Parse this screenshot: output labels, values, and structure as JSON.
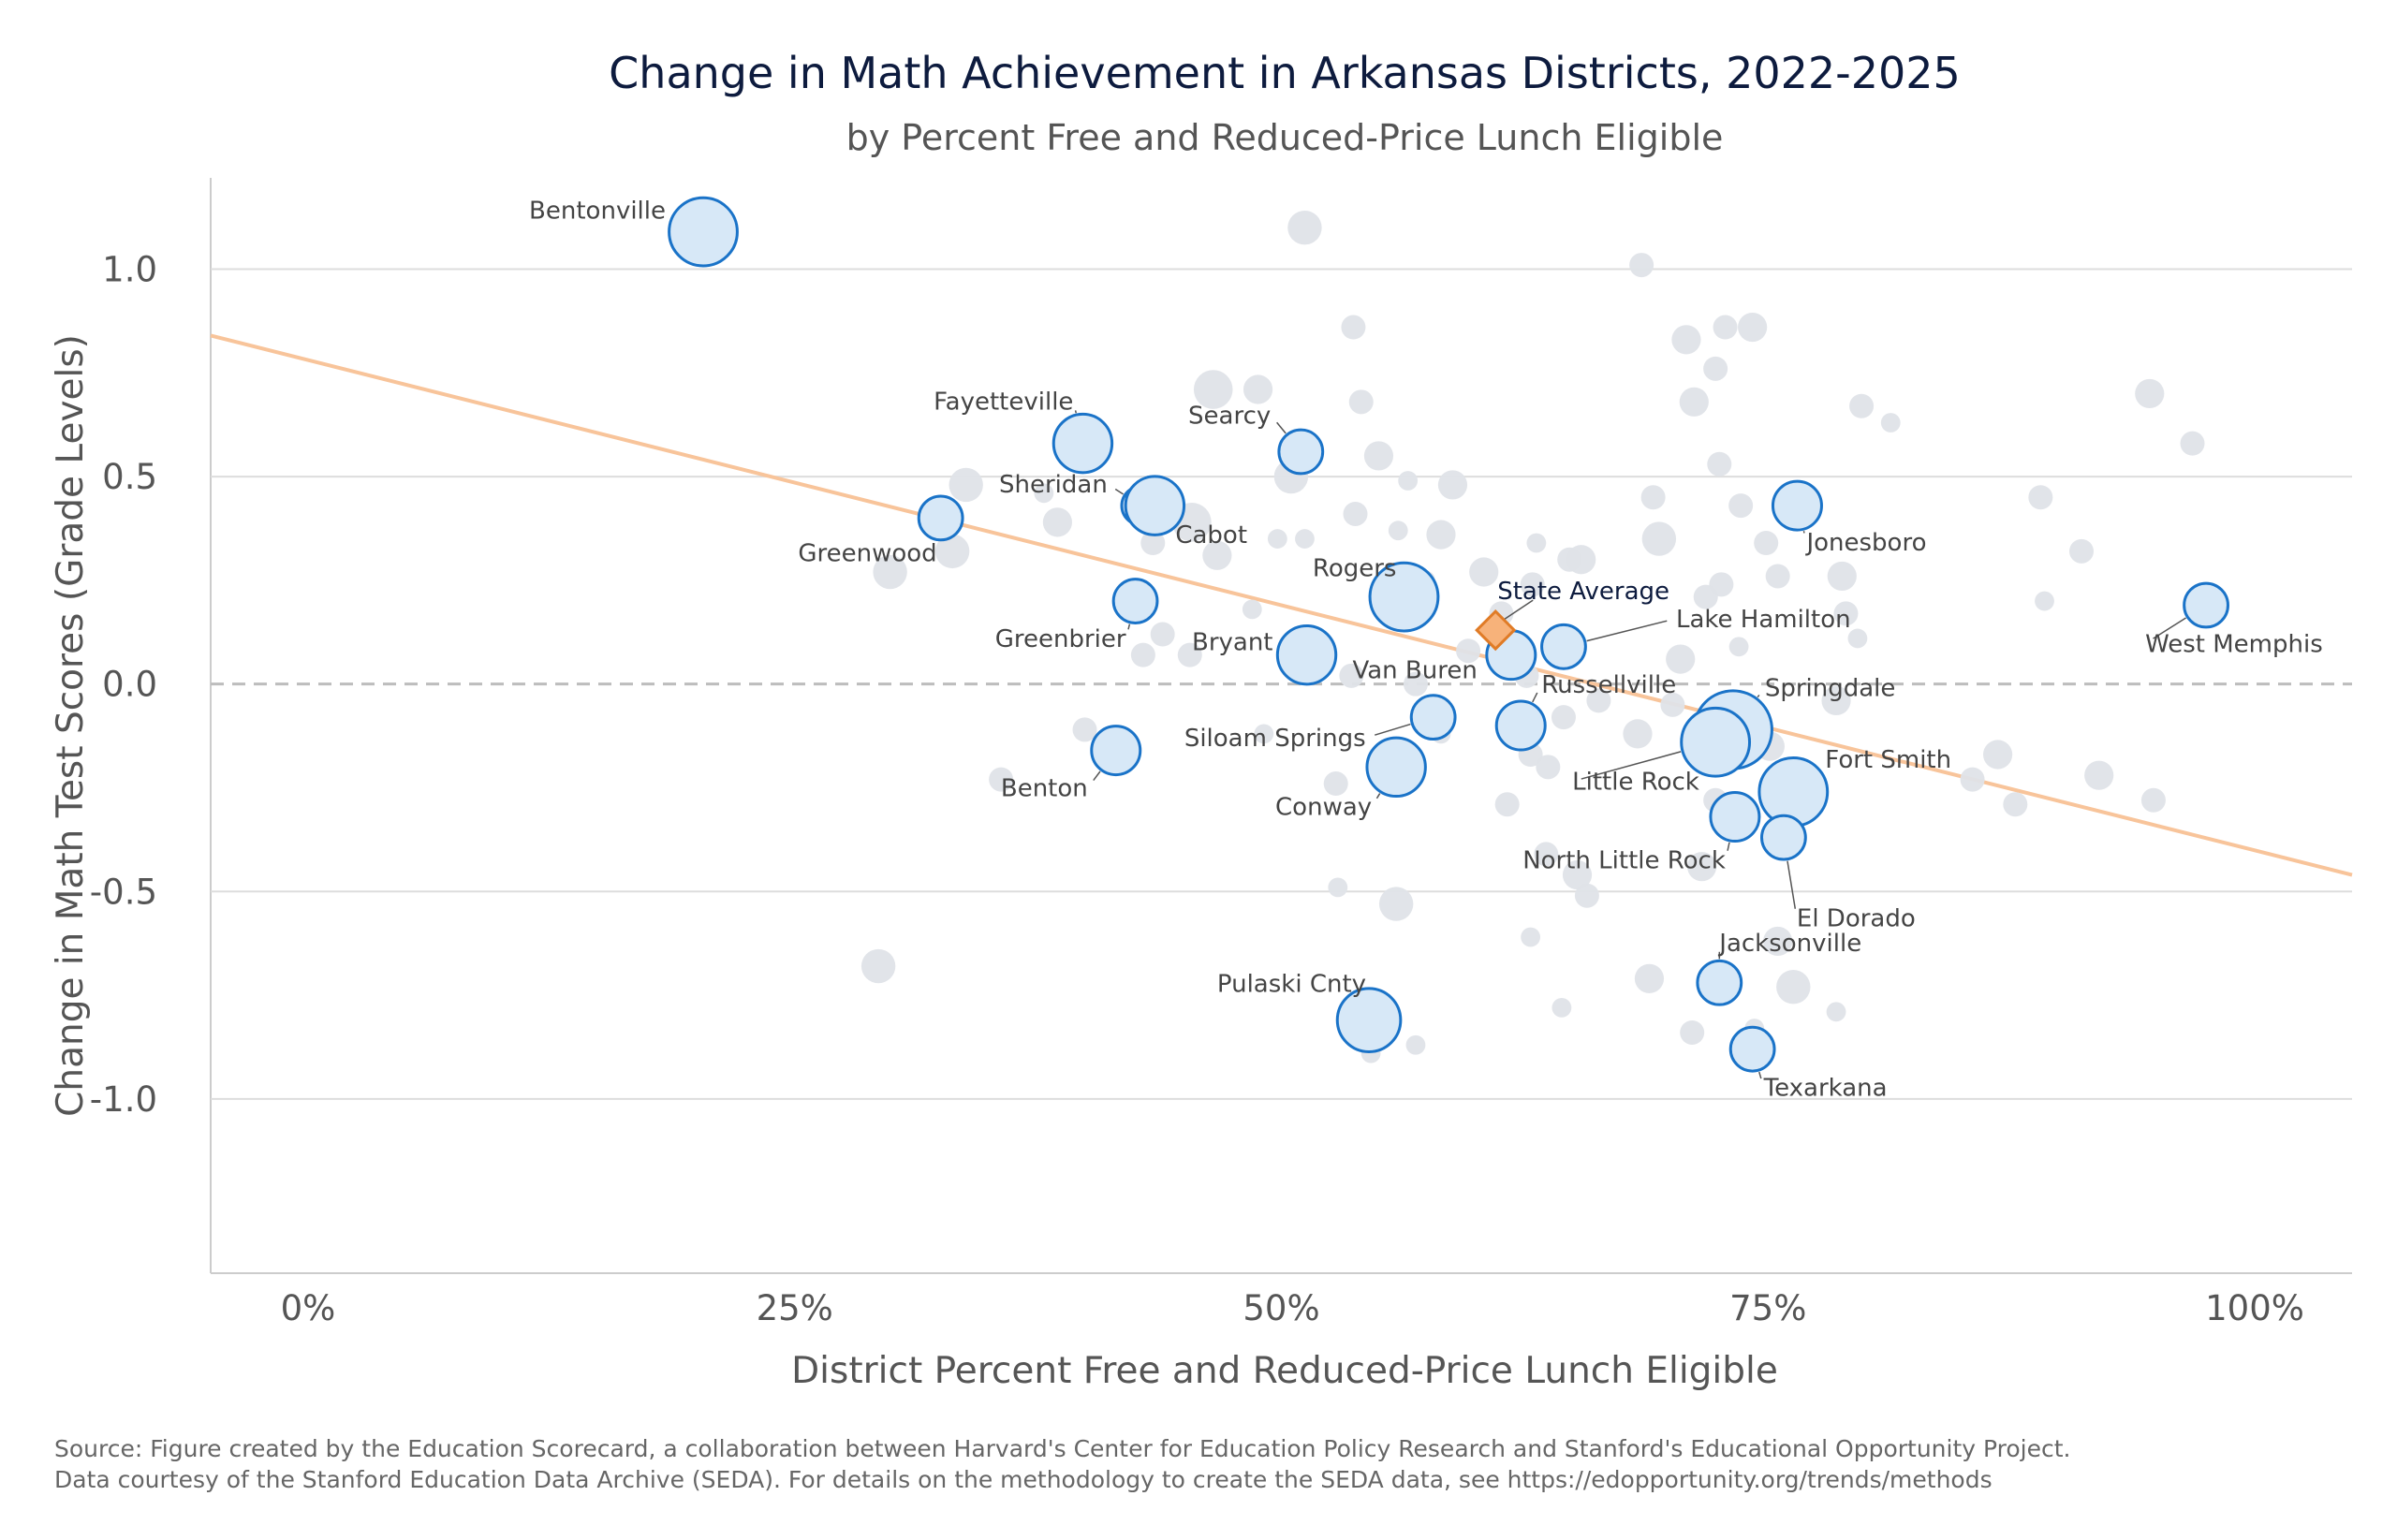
{
  "chart_data": {
    "type": "scatter",
    "title": "Change in Math Achievement in Arkansas Districts, 2022-2025",
    "subtitle": "by Percent Free and Reduced-Price Lunch Eligible",
    "xlabel": "District Percent Free and Reduced-Price Lunch Eligible",
    "ylabel": "Change in Math Test Scores (Grade Levels)",
    "xlim": [
      -5,
      105
    ],
    "ylim": [
      -1.42,
      1.22
    ],
    "x_ticks": [
      0,
      25,
      50,
      75,
      100
    ],
    "x_tick_labels": [
      "0%",
      "25%",
      "50%",
      "75%",
      "100%"
    ],
    "y_ticks": [
      1.0,
      0.5,
      0.0,
      -0.5,
      -1.0
    ],
    "y_tick_labels": [
      "1.0",
      "0.5",
      "0.0",
      "-0.5",
      "-1.0"
    ],
    "grid": "horizontal",
    "zero_line": "dashed",
    "trend_line": {
      "x": [
        -5,
        105
      ],
      "y": [
        0.84,
        -0.46
      ],
      "color": "#f8c49a"
    },
    "colors": {
      "highlight_fill": "#d7e8f7",
      "highlight_stroke": "#1a73c8",
      "background_fill": "#dfe3e8",
      "state_fill": "#f7b27a",
      "state_stroke": "#e07b26",
      "grid": "#dddddd"
    },
    "state_average": {
      "label": "State Average",
      "x": 61,
      "y": 0.13
    },
    "labeled_districts": [
      {
        "name": "Bentonville",
        "x": 20.3,
        "y": 1.09,
        "size": 14
      },
      {
        "name": "Fayetteville",
        "x": 39.8,
        "y": 0.58,
        "size": 12
      },
      {
        "name": "Greenwood",
        "x": 32.5,
        "y": 0.4,
        "size": 9
      },
      {
        "name": "Sheridan",
        "x": 42.8,
        "y": 0.43,
        "size": 8
      },
      {
        "name": "Cabot",
        "x": 43.5,
        "y": 0.43,
        "size": 12
      },
      {
        "name": "Searcy",
        "x": 51.0,
        "y": 0.56,
        "size": 9
      },
      {
        "name": "Rogers",
        "x": 56.3,
        "y": 0.21,
        "size": 14
      },
      {
        "name": "Greenbrier",
        "x": 42.5,
        "y": 0.2,
        "size": 9
      },
      {
        "name": "Bryant",
        "x": 51.3,
        "y": 0.07,
        "size": 12
      },
      {
        "name": "Van Buren",
        "x": 61.8,
        "y": 0.07,
        "size": 10
      },
      {
        "name": "Lake Hamilton",
        "x": 64.5,
        "y": 0.09,
        "size": 9
      },
      {
        "name": "Jonesboro",
        "x": 76.5,
        "y": 0.43,
        "size": 10
      },
      {
        "name": "West Memphis",
        "x": 97.5,
        "y": 0.19,
        "size": 9
      },
      {
        "name": "Russellville",
        "x": 62.3,
        "y": -0.1,
        "size": 10
      },
      {
        "name": "Springdale",
        "x": 73.2,
        "y": -0.11,
        "size": 16
      },
      {
        "name": "Little Rock",
        "x": 72.3,
        "y": -0.14,
        "size": 14
      },
      {
        "name": "Siloam Springs",
        "x": 57.8,
        "y": -0.08,
        "size": 9
      },
      {
        "name": "Conway",
        "x": 55.9,
        "y": -0.2,
        "size": 12
      },
      {
        "name": "Benton",
        "x": 41.5,
        "y": -0.16,
        "size": 10
      },
      {
        "name": "Fort Smith",
        "x": 76.3,
        "y": -0.26,
        "size": 14
      },
      {
        "name": "North Little Rock",
        "x": 73.3,
        "y": -0.32,
        "size": 10
      },
      {
        "name": "El Dorado",
        "x": 75.8,
        "y": -0.37,
        "size": 9
      },
      {
        "name": "Jacksonville",
        "x": 72.5,
        "y": -0.72,
        "size": 9
      },
      {
        "name": "Pulaski Cnty",
        "x": 54.5,
        "y": -0.81,
        "size": 13
      },
      {
        "name": "Texarkana",
        "x": 74.2,
        "y": -0.88,
        "size": 9
      }
    ],
    "other_districts": [
      {
        "x": 51.2,
        "y": 1.1,
        "size": 7
      },
      {
        "x": 68.5,
        "y": 1.01,
        "size": 5
      },
      {
        "x": 53.7,
        "y": 0.86,
        "size": 5
      },
      {
        "x": 70.8,
        "y": 0.83,
        "size": 6
      },
      {
        "x": 72.8,
        "y": 0.86,
        "size": 5
      },
      {
        "x": 74.2,
        "y": 0.86,
        "size": 6
      },
      {
        "x": 72.3,
        "y": 0.76,
        "size": 5
      },
      {
        "x": 46.5,
        "y": 0.71,
        "size": 8
      },
      {
        "x": 48.8,
        "y": 0.71,
        "size": 6
      },
      {
        "x": 71.2,
        "y": 0.68,
        "size": 6
      },
      {
        "x": 54.1,
        "y": 0.68,
        "size": 5
      },
      {
        "x": 79.8,
        "y": 0.67,
        "size": 5
      },
      {
        "x": 81.3,
        "y": 0.63,
        "size": 4
      },
      {
        "x": 94.6,
        "y": 0.7,
        "size": 6
      },
      {
        "x": 96.8,
        "y": 0.58,
        "size": 5
      },
      {
        "x": 55.0,
        "y": 0.55,
        "size": 6
      },
      {
        "x": 72.5,
        "y": 0.53,
        "size": 5
      },
      {
        "x": 50.5,
        "y": 0.5,
        "size": 7
      },
      {
        "x": 56.5,
        "y": 0.49,
        "size": 4
      },
      {
        "x": 58.8,
        "y": 0.48,
        "size": 6
      },
      {
        "x": 33.8,
        "y": 0.48,
        "size": 7
      },
      {
        "x": 37.8,
        "y": 0.46,
        "size": 4
      },
      {
        "x": 69.1,
        "y": 0.45,
        "size": 5
      },
      {
        "x": 73.6,
        "y": 0.43,
        "size": 5
      },
      {
        "x": 89.0,
        "y": 0.45,
        "size": 5
      },
      {
        "x": 53.8,
        "y": 0.41,
        "size": 5
      },
      {
        "x": 45.4,
        "y": 0.39,
        "size": 8
      },
      {
        "x": 38.5,
        "y": 0.39,
        "size": 6
      },
      {
        "x": 56.0,
        "y": 0.37,
        "size": 4
      },
      {
        "x": 58.2,
        "y": 0.36,
        "size": 6
      },
      {
        "x": 49.8,
        "y": 0.35,
        "size": 4
      },
      {
        "x": 51.2,
        "y": 0.35,
        "size": 4
      },
      {
        "x": 63.1,
        "y": 0.34,
        "size": 4
      },
      {
        "x": 69.4,
        "y": 0.35,
        "size": 7
      },
      {
        "x": 74.9,
        "y": 0.34,
        "size": 5
      },
      {
        "x": 91.1,
        "y": 0.32,
        "size": 5
      },
      {
        "x": 43.4,
        "y": 0.34,
        "size": 5
      },
      {
        "x": 33.1,
        "y": 0.32,
        "size": 7
      },
      {
        "x": 46.7,
        "y": 0.31,
        "size": 6
      },
      {
        "x": 64.8,
        "y": 0.3,
        "size": 5
      },
      {
        "x": 65.4,
        "y": 0.3,
        "size": 6
      },
      {
        "x": 29.9,
        "y": 0.27,
        "size": 7
      },
      {
        "x": 60.4,
        "y": 0.27,
        "size": 6
      },
      {
        "x": 75.5,
        "y": 0.26,
        "size": 5
      },
      {
        "x": 78.8,
        "y": 0.26,
        "size": 6
      },
      {
        "x": 57.4,
        "y": 0.25,
        "size": 4
      },
      {
        "x": 62.9,
        "y": 0.24,
        "size": 5
      },
      {
        "x": 72.6,
        "y": 0.24,
        "size": 5
      },
      {
        "x": 71.8,
        "y": 0.21,
        "size": 5
      },
      {
        "x": 89.2,
        "y": 0.2,
        "size": 4
      },
      {
        "x": 48.5,
        "y": 0.18,
        "size": 4
      },
      {
        "x": 61.3,
        "y": 0.17,
        "size": 5
      },
      {
        "x": 79.0,
        "y": 0.17,
        "size": 5
      },
      {
        "x": 43.9,
        "y": 0.12,
        "size": 5
      },
      {
        "x": 79.6,
        "y": 0.11,
        "size": 4
      },
      {
        "x": 73.5,
        "y": 0.09,
        "size": 4
      },
      {
        "x": 59.6,
        "y": 0.08,
        "size": 5
      },
      {
        "x": 42.9,
        "y": 0.07,
        "size": 5
      },
      {
        "x": 45.3,
        "y": 0.07,
        "size": 5
      },
      {
        "x": 70.5,
        "y": 0.06,
        "size": 6
      },
      {
        "x": 53.6,
        "y": 0.02,
        "size": 5
      },
      {
        "x": 56.9,
        "y": 0.0,
        "size": 5
      },
      {
        "x": 62.6,
        "y": 0.02,
        "size": 5
      },
      {
        "x": 66.3,
        "y": -0.04,
        "size": 5
      },
      {
        "x": 70.1,
        "y": -0.05,
        "size": 5
      },
      {
        "x": 78.5,
        "y": -0.04,
        "size": 6
      },
      {
        "x": 64.5,
        "y": -0.08,
        "size": 5
      },
      {
        "x": 68.3,
        "y": -0.12,
        "size": 6
      },
      {
        "x": 39.9,
        "y": -0.11,
        "size": 5
      },
      {
        "x": 49.1,
        "y": -0.12,
        "size": 4
      },
      {
        "x": 58.2,
        "y": -0.12,
        "size": 4
      },
      {
        "x": 75.1,
        "y": -0.15,
        "size": 6
      },
      {
        "x": 86.8,
        "y": -0.17,
        "size": 6
      },
      {
        "x": 62.8,
        "y": -0.17,
        "size": 5
      },
      {
        "x": 63.7,
        "y": -0.2,
        "size": 5
      },
      {
        "x": 56.5,
        "y": -0.17,
        "size": 4
      },
      {
        "x": 35.6,
        "y": -0.23,
        "size": 5
      },
      {
        "x": 52.8,
        "y": -0.24,
        "size": 5
      },
      {
        "x": 85.5,
        "y": -0.23,
        "size": 5
      },
      {
        "x": 92.0,
        "y": -0.22,
        "size": 6
      },
      {
        "x": 72.3,
        "y": -0.28,
        "size": 5
      },
      {
        "x": 61.6,
        "y": -0.29,
        "size": 5
      },
      {
        "x": 87.7,
        "y": -0.29,
        "size": 5
      },
      {
        "x": 94.8,
        "y": -0.28,
        "size": 5
      },
      {
        "x": 63.6,
        "y": -0.41,
        "size": 5
      },
      {
        "x": 71.6,
        "y": -0.44,
        "size": 6
      },
      {
        "x": 65.2,
        "y": -0.46,
        "size": 6
      },
      {
        "x": 65.7,
        "y": -0.51,
        "size": 5
      },
      {
        "x": 52.9,
        "y": -0.49,
        "size": 4
      },
      {
        "x": 55.9,
        "y": -0.53,
        "size": 7
      },
      {
        "x": 75.5,
        "y": -0.62,
        "size": 6
      },
      {
        "x": 62.8,
        "y": -0.61,
        "size": 4
      },
      {
        "x": 29.3,
        "y": -0.68,
        "size": 7
      },
      {
        "x": 68.9,
        "y": -0.71,
        "size": 6
      },
      {
        "x": 76.3,
        "y": -0.73,
        "size": 7
      },
      {
        "x": 64.4,
        "y": -0.78,
        "size": 4
      },
      {
        "x": 78.5,
        "y": -0.79,
        "size": 4
      },
      {
        "x": 71.1,
        "y": -0.84,
        "size": 5
      },
      {
        "x": 74.3,
        "y": -0.83,
        "size": 4
      },
      {
        "x": 56.9,
        "y": -0.87,
        "size": 4
      },
      {
        "x": 54.6,
        "y": -0.89,
        "size": 4
      }
    ],
    "source": [
      "Source: Figure created by the Education Scorecard, a collaboration between Harvard's Center for Education Policy Research and Stanford's Educational Opportunity Project.",
      "Data courtesy of the Stanford Education Data Archive (SEDA). For details on the methodology to create the SEDA data, see https://edopportunity.org/trends/methods"
    ]
  }
}
